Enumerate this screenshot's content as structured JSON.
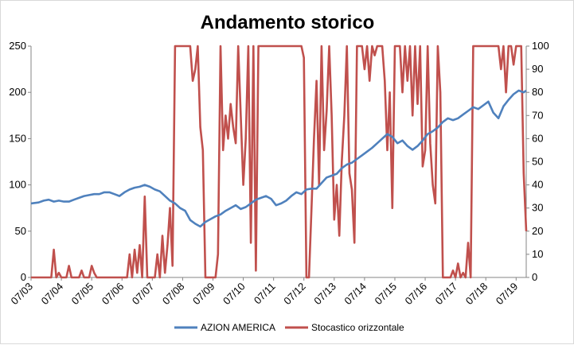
{
  "chart_data": {
    "type": "line",
    "title": "Andamento storico",
    "x_tick_labels": [
      "07/03",
      "07/04",
      "07/05",
      "07/06",
      "07/07",
      "07/08",
      "07/09",
      "07/10",
      "07/11",
      "07/12",
      "07/13",
      "07/14",
      "07/15",
      "07/16",
      "07/17",
      "07/18",
      "07/19"
    ],
    "x_range": [
      "2003-07",
      "2019-11"
    ],
    "y_left": {
      "range": [
        0,
        250
      ],
      "ticks": [
        0,
        50,
        100,
        150,
        200,
        250
      ]
    },
    "y_right": {
      "range": [
        0,
        100
      ],
      "ticks": [
        0,
        10,
        20,
        30,
        40,
        50,
        60,
        70,
        80,
        90,
        100
      ]
    },
    "grid": false,
    "legend_position": "bottom",
    "series": [
      {
        "name": "AZION AMERICA",
        "axis": "left",
        "color": "#4f81bd",
        "points": [
          [
            "2003-07",
            80
          ],
          [
            "2003-10",
            81
          ],
          [
            "2003-12",
            83
          ],
          [
            "2004-02",
            84
          ],
          [
            "2004-04",
            82
          ],
          [
            "2004-06",
            83
          ],
          [
            "2004-08",
            82
          ],
          [
            "2004-10",
            82
          ],
          [
            "2004-12",
            84
          ],
          [
            "2005-02",
            86
          ],
          [
            "2005-04",
            88
          ],
          [
            "2005-06",
            89
          ],
          [
            "2005-08",
            90
          ],
          [
            "2005-10",
            90
          ],
          [
            "2005-12",
            92
          ],
          [
            "2006-02",
            92
          ],
          [
            "2006-04",
            90
          ],
          [
            "2006-06",
            88
          ],
          [
            "2006-08",
            92
          ],
          [
            "2006-10",
            95
          ],
          [
            "2006-12",
            97
          ],
          [
            "2007-02",
            98
          ],
          [
            "2007-04",
            100
          ],
          [
            "2007-06",
            98
          ],
          [
            "2007-08",
            95
          ],
          [
            "2007-10",
            93
          ],
          [
            "2007-12",
            88
          ],
          [
            "2008-02",
            83
          ],
          [
            "2008-04",
            80
          ],
          [
            "2008-06",
            75
          ],
          [
            "2008-08",
            72
          ],
          [
            "2008-10",
            62
          ],
          [
            "2008-12",
            58
          ],
          [
            "2009-02",
            55
          ],
          [
            "2009-04",
            60
          ],
          [
            "2009-06",
            63
          ],
          [
            "2009-08",
            66
          ],
          [
            "2009-10",
            68
          ],
          [
            "2009-12",
            72
          ],
          [
            "2010-02",
            75
          ],
          [
            "2010-04",
            78
          ],
          [
            "2010-06",
            74
          ],
          [
            "2010-08",
            76
          ],
          [
            "2010-10",
            80
          ],
          [
            "2010-12",
            84
          ],
          [
            "2011-02",
            86
          ],
          [
            "2011-04",
            88
          ],
          [
            "2011-06",
            85
          ],
          [
            "2011-08",
            78
          ],
          [
            "2011-10",
            80
          ],
          [
            "2011-12",
            83
          ],
          [
            "2012-02",
            88
          ],
          [
            "2012-04",
            92
          ],
          [
            "2012-06",
            90
          ],
          [
            "2012-08",
            95
          ],
          [
            "2012-10",
            96
          ],
          [
            "2012-12",
            96
          ],
          [
            "2013-02",
            102
          ],
          [
            "2013-04",
            108
          ],
          [
            "2013-06",
            110
          ],
          [
            "2013-08",
            112
          ],
          [
            "2013-10",
            118
          ],
          [
            "2013-12",
            122
          ],
          [
            "2014-02",
            124
          ],
          [
            "2014-04",
            128
          ],
          [
            "2014-06",
            132
          ],
          [
            "2014-08",
            136
          ],
          [
            "2014-10",
            140
          ],
          [
            "2014-12",
            145
          ],
          [
            "2015-02",
            150
          ],
          [
            "2015-04",
            155
          ],
          [
            "2015-06",
            152
          ],
          [
            "2015-08",
            145
          ],
          [
            "2015-10",
            148
          ],
          [
            "2015-12",
            142
          ],
          [
            "2016-02",
            138
          ],
          [
            "2016-04",
            142
          ],
          [
            "2016-06",
            148
          ],
          [
            "2016-08",
            155
          ],
          [
            "2016-10",
            158
          ],
          [
            "2016-12",
            162
          ],
          [
            "2017-02",
            168
          ],
          [
            "2017-04",
            172
          ],
          [
            "2017-06",
            170
          ],
          [
            "2017-08",
            172
          ],
          [
            "2017-10",
            176
          ],
          [
            "2017-12",
            180
          ],
          [
            "2018-02",
            184
          ],
          [
            "2018-04",
            182
          ],
          [
            "2018-06",
            186
          ],
          [
            "2018-08",
            190
          ],
          [
            "2018-10",
            178
          ],
          [
            "2018-12",
            172
          ],
          [
            "2019-02",
            185
          ],
          [
            "2019-04",
            192
          ],
          [
            "2019-06",
            198
          ],
          [
            "2019-08",
            202
          ],
          [
            "2019-10",
            200
          ],
          [
            "2019-11",
            202
          ]
        ]
      },
      {
        "name": "Stocastico orizzontale",
        "axis": "right",
        "color": "#c0504d",
        "points": [
          [
            "2003-07",
            0
          ],
          [
            "2004-03",
            0
          ],
          [
            "2004-04",
            12
          ],
          [
            "2004-05",
            0
          ],
          [
            "2004-06",
            2
          ],
          [
            "2004-07",
            0
          ],
          [
            "2004-09",
            0
          ],
          [
            "2004-10",
            5
          ],
          [
            "2004-11",
            0
          ],
          [
            "2005-02",
            0
          ],
          [
            "2005-03",
            3
          ],
          [
            "2005-04",
            0
          ],
          [
            "2005-06",
            0
          ],
          [
            "2005-07",
            5
          ],
          [
            "2005-08",
            2
          ],
          [
            "2005-09",
            0
          ],
          [
            "2006-09",
            0
          ],
          [
            "2006-10",
            10
          ],
          [
            "2006-11",
            0
          ],
          [
            "2006-12",
            12
          ],
          [
            "2007-01",
            2
          ],
          [
            "2007-02",
            14
          ],
          [
            "2007-03",
            0
          ],
          [
            "2007-04",
            35
          ],
          [
            "2007-05",
            0
          ],
          [
            "2007-08",
            0
          ],
          [
            "2007-09",
            10
          ],
          [
            "2007-10",
            0
          ],
          [
            "2007-11",
            18
          ],
          [
            "2007-12",
            2
          ],
          [
            "2008-01",
            14
          ],
          [
            "2008-02",
            30
          ],
          [
            "2008-03",
            5
          ],
          [
            "2008-04",
            100
          ],
          [
            "2008-10",
            100
          ],
          [
            "2008-11",
            85
          ],
          [
            "2008-12",
            90
          ],
          [
            "2009-01",
            100
          ],
          [
            "2009-02",
            65
          ],
          [
            "2009-03",
            55
          ],
          [
            "2009-04",
            0
          ],
          [
            "2009-05",
            0
          ],
          [
            "2009-08",
            0
          ],
          [
            "2009-09",
            10
          ],
          [
            "2009-10",
            100
          ],
          [
            "2009-11",
            55
          ],
          [
            "2009-12",
            70
          ],
          [
            "2010-01",
            60
          ],
          [
            "2010-02",
            75
          ],
          [
            "2010-03",
            65
          ],
          [
            "2010-04",
            58
          ],
          [
            "2010-05",
            100
          ],
          [
            "2010-06",
            70
          ],
          [
            "2010-07",
            40
          ],
          [
            "2010-08",
            60
          ],
          [
            "2010-09",
            100
          ],
          [
            "2010-10",
            15
          ],
          [
            "2010-11",
            100
          ],
          [
            "2010-12",
            3
          ],
          [
            "2011-01",
            100
          ],
          [
            "2012-06",
            100
          ],
          [
            "2012-07",
            95
          ],
          [
            "2012-08",
            0
          ],
          [
            "2012-09",
            0
          ],
          [
            "2012-10",
            30
          ],
          [
            "2012-11",
            60
          ],
          [
            "2012-12",
            85
          ],
          [
            "2013-01",
            40
          ],
          [
            "2013-02",
            100
          ],
          [
            "2013-03",
            55
          ],
          [
            "2013-04",
            72
          ],
          [
            "2013-05",
            100
          ],
          [
            "2013-06",
            70
          ],
          [
            "2013-07",
            25
          ],
          [
            "2013-08",
            40
          ],
          [
            "2013-09",
            18
          ],
          [
            "2013-10",
            50
          ],
          [
            "2013-11",
            70
          ],
          [
            "2013-12",
            100
          ],
          [
            "2014-01",
            45
          ],
          [
            "2014-02",
            38
          ],
          [
            "2014-03",
            15
          ],
          [
            "2014-04",
            100
          ],
          [
            "2014-06",
            100
          ],
          [
            "2014-07",
            90
          ],
          [
            "2014-08",
            100
          ],
          [
            "2014-09",
            85
          ],
          [
            "2014-10",
            100
          ],
          [
            "2014-11",
            96
          ],
          [
            "2014-12",
            100
          ],
          [
            "2015-02",
            100
          ],
          [
            "2015-03",
            85
          ],
          [
            "2015-04",
            55
          ],
          [
            "2015-05",
            80
          ],
          [
            "2015-06",
            30
          ],
          [
            "2015-07",
            100
          ],
          [
            "2015-09",
            100
          ],
          [
            "2015-10",
            80
          ],
          [
            "2015-11",
            100
          ],
          [
            "2015-12",
            85
          ],
          [
            "2016-01",
            100
          ],
          [
            "2016-02",
            70
          ],
          [
            "2016-03",
            100
          ],
          [
            "2016-04",
            75
          ],
          [
            "2016-05",
            100
          ],
          [
            "2016-06",
            48
          ],
          [
            "2016-07",
            55
          ],
          [
            "2016-08",
            100
          ],
          [
            "2016-09",
            58
          ],
          [
            "2016-10",
            40
          ],
          [
            "2016-11",
            32
          ],
          [
            "2016-12",
            100
          ],
          [
            "2017-01",
            80
          ],
          [
            "2017-02",
            0
          ],
          [
            "2017-05",
            0
          ],
          [
            "2017-06",
            3
          ],
          [
            "2017-07",
            0
          ],
          [
            "2017-08",
            6
          ],
          [
            "2017-09",
            0
          ],
          [
            "2017-10",
            2
          ],
          [
            "2017-11",
            0
          ],
          [
            "2017-12",
            15
          ],
          [
            "2018-01",
            0
          ],
          [
            "2018-02",
            100
          ],
          [
            "2018-12",
            100
          ],
          [
            "2019-01",
            90
          ],
          [
            "2019-02",
            100
          ],
          [
            "2019-03",
            80
          ],
          [
            "2019-04",
            100
          ],
          [
            "2019-05",
            100
          ],
          [
            "2019-06",
            92
          ],
          [
            "2019-07",
            100
          ],
          [
            "2019-08",
            100
          ],
          [
            "2019-09",
            100
          ],
          [
            "2019-10",
            45
          ],
          [
            "2019-11",
            20
          ]
        ]
      }
    ]
  }
}
